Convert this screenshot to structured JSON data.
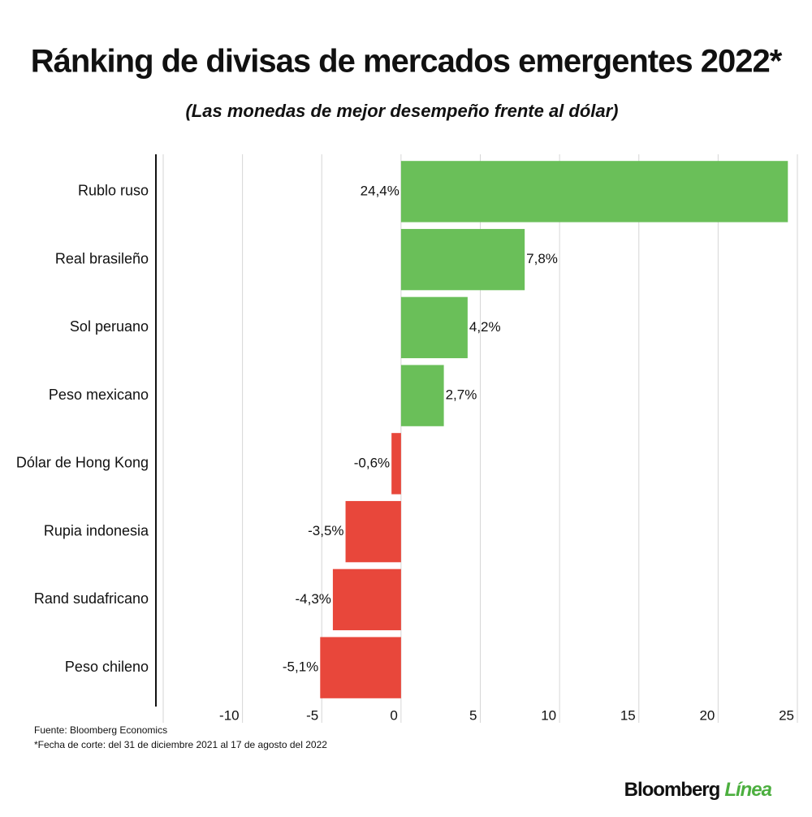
{
  "chart_data": {
    "type": "hbar",
    "title": "Ránking de divisas de mercados emergentes 2022*",
    "subtitle": "(Las monedas de mejor desempeño frente al dólar)",
    "categories": [
      "Rublo ruso",
      "Real brasileño",
      "Sol peruano",
      "Peso mexicano",
      "Dólar de Hong Kong",
      "Rupia indonesia",
      "Rand sudafricano",
      "Peso chileno"
    ],
    "values": [
      24.4,
      7.8,
      4.2,
      2.7,
      -0.6,
      -3.5,
      -4.3,
      -5.1
    ],
    "value_labels": [
      "24,4%",
      "7,8%",
      "4,2%",
      "2,7%",
      "-0,6%",
      "-3,5%",
      "-4,3%",
      "-5,1%"
    ],
    "colors": [
      "#6abf59",
      "#6abf59",
      "#6abf59",
      "#6abf59",
      "#e8473b",
      "#e8473b",
      "#e8473b",
      "#e8473b"
    ],
    "xlim": [
      -15,
      25
    ],
    "xticks": [
      -10,
      -5,
      0,
      5,
      10,
      15,
      20,
      25
    ],
    "grid": true,
    "source": "Fuente: Bloomberg Economics",
    "note": "*Fecha de corte: del 31 de diciembre 2021 al 17 de agosto del 2022",
    "logo": {
      "brand": "Bloomberg",
      "product": "Línea"
    }
  }
}
